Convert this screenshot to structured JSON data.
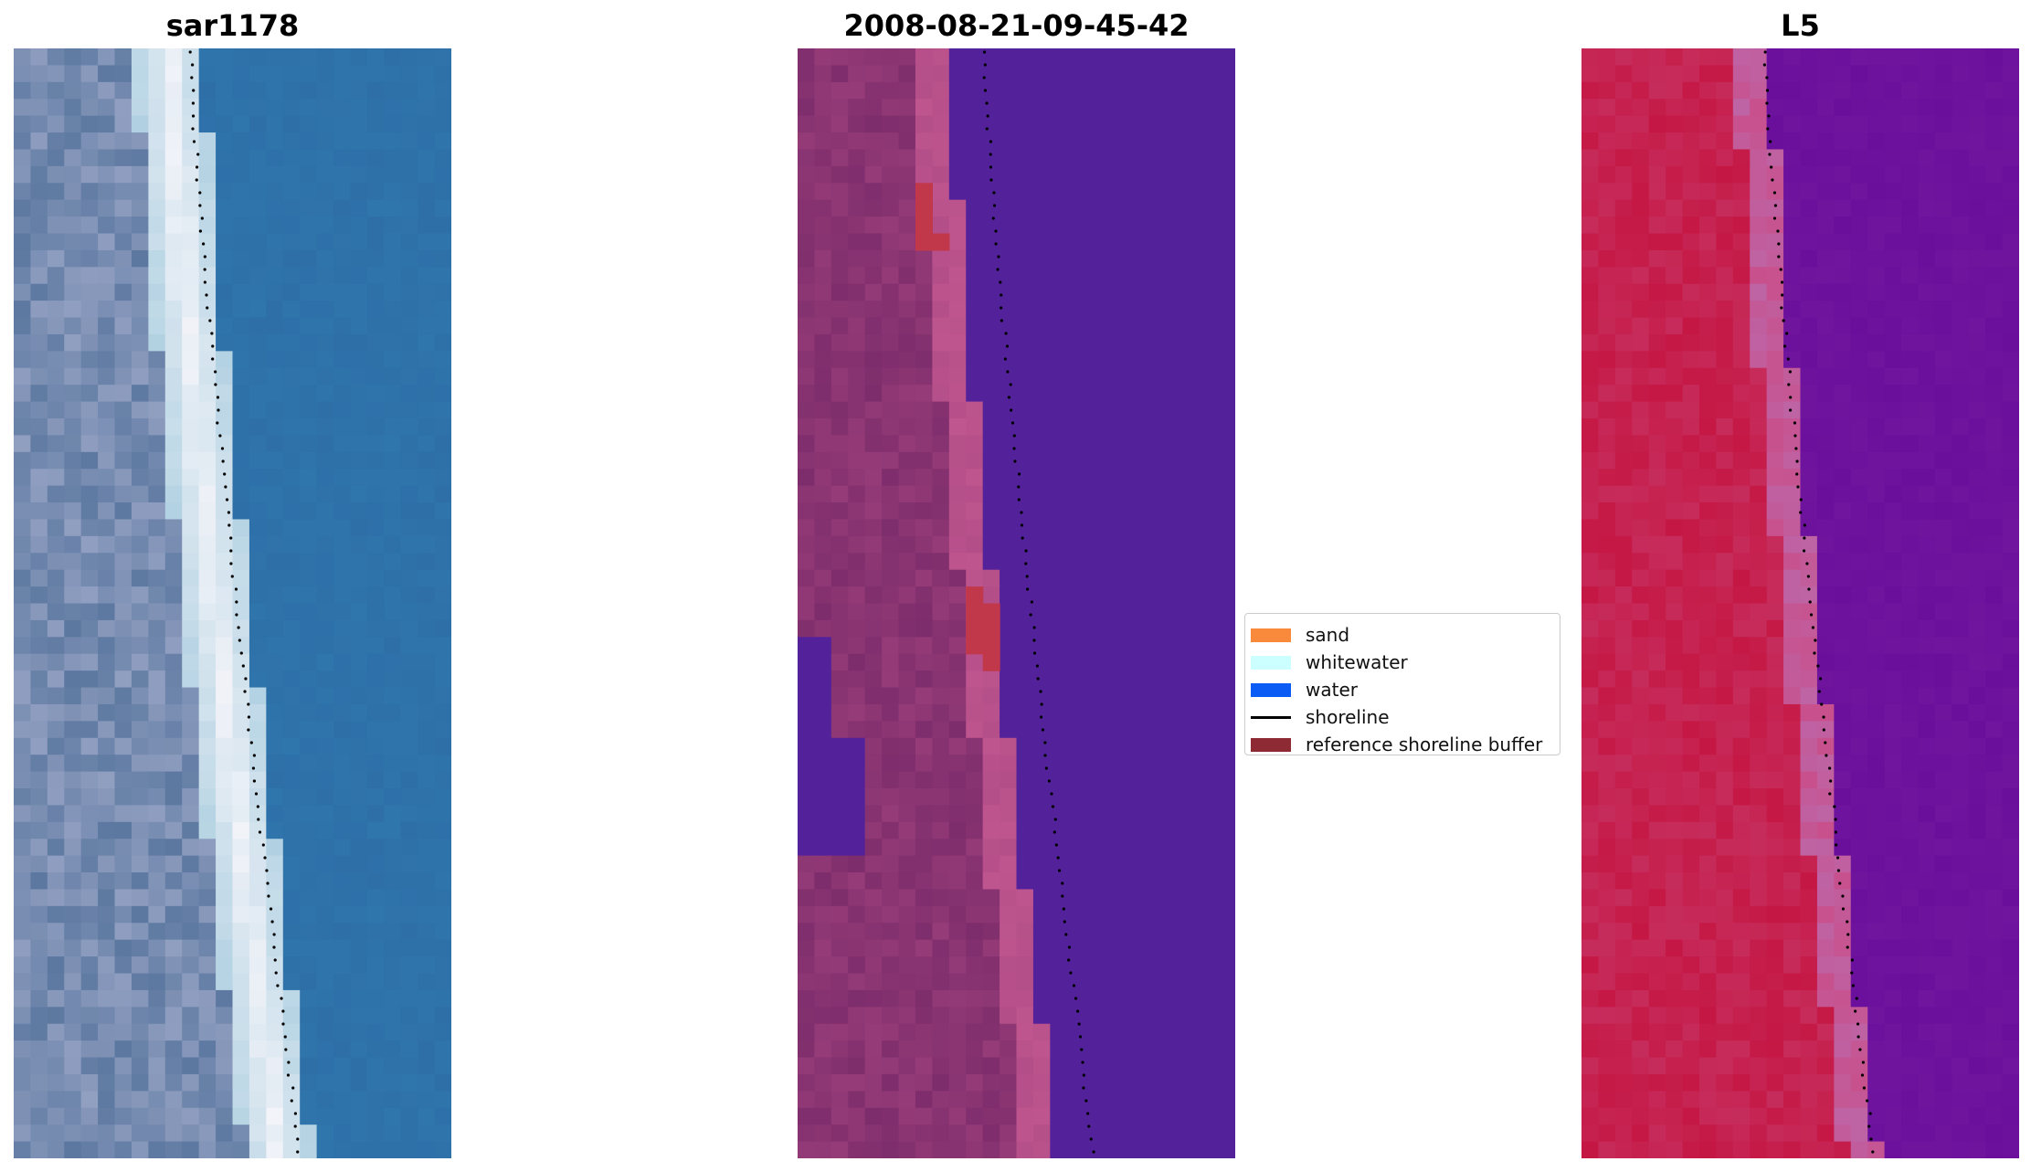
{
  "panels": [
    {
      "title": "sar1178",
      "name": "sar-image-panel"
    },
    {
      "title": "2008-08-21-09-45-42",
      "name": "classification-panel"
    },
    {
      "title": "L5",
      "name": "false-color-panel"
    }
  ],
  "legend": {
    "items": [
      {
        "label": "sand",
        "color": "#f98a3c",
        "kind": "patch"
      },
      {
        "label": "whitewater",
        "color": "#ccffff",
        "kind": "patch"
      },
      {
        "label": "water",
        "color": "#0a5cf5",
        "kind": "patch"
      },
      {
        "label": "shoreline",
        "color": "#000000",
        "kind": "line"
      },
      {
        "label": "reference shoreline buffer",
        "color": "#8e2a33",
        "kind": "patch"
      }
    ]
  },
  "colors": {
    "sar_water": "#2e6fa8",
    "class_water": "#53229a",
    "class_land_dark": "#7e2d6c",
    "class_land_light": "#c0568f",
    "class_buffer": "#c1384a",
    "l5_land": "#c51744",
    "l5_water": "#6a0f9c"
  }
}
